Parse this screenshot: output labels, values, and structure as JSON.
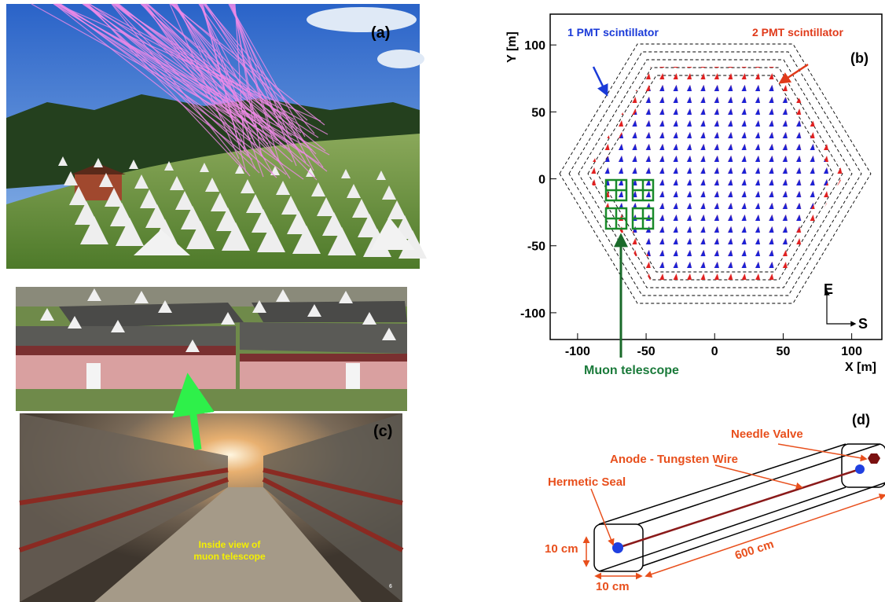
{
  "panels": {
    "a": {
      "label": "(a)"
    },
    "c": {
      "label": "(c)",
      "caption": [
        "Inside view of",
        "muon telescope"
      ],
      "page_number": "6"
    },
    "d": {
      "label": "(d)",
      "labels": {
        "needle_valve": "Needle Valve",
        "anode": "Anode - Tungsten Wire",
        "seal": "Hermetic Seal",
        "height": "10 cm",
        "width": "10 cm",
        "length": "600 cm"
      }
    }
  },
  "chart_data": {
    "type": "scatter",
    "panel_label": "(b)",
    "xlabel": "X [m]",
    "ylabel": "Y [m]",
    "xlim": [
      -120,
      122
    ],
    "ylim": [
      -120,
      123
    ],
    "xticks": [
      -100,
      -50,
      0,
      50,
      100
    ],
    "yticks": [
      -100,
      -50,
      0,
      50,
      100
    ],
    "annotations": {
      "one_pmt": "1 PMT scintillator",
      "two_pmt": "2 PMT scintillator",
      "muon": "Muon telescope",
      "east": "E",
      "south": "S"
    }
  }
}
